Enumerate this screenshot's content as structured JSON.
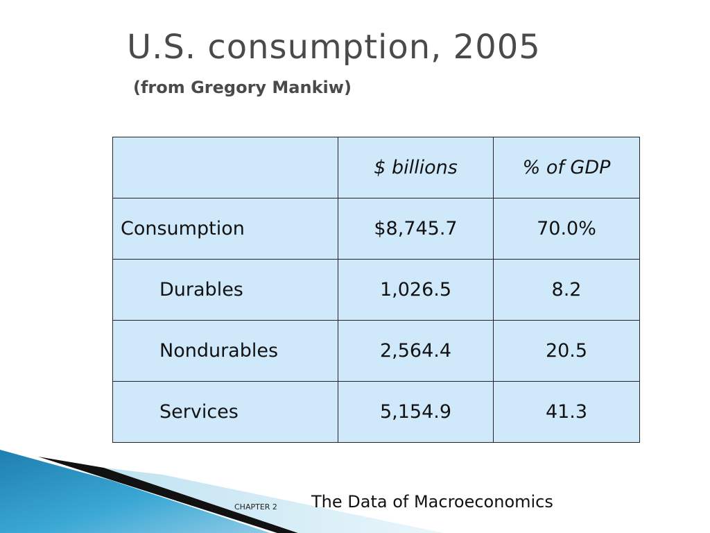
{
  "slide": {
    "title": "U.S. consumption, 2005",
    "subtitle": "(from Gregory Mankiw)"
  },
  "table": {
    "headers": [
      "",
      "$ billions",
      "% of GDP"
    ],
    "rows": [
      {
        "label": "Consumption",
        "billions": "$8,745.7",
        "pct_gdp": "70.0%"
      },
      {
        "label": "Durables",
        "billions": "1,026.5",
        "pct_gdp": "8.2"
      },
      {
        "label": "Nondurables",
        "billions": "2,564.4",
        "pct_gdp": "20.5"
      },
      {
        "label": "Services",
        "billions": "5,154.9",
        "pct_gdp": "41.3"
      }
    ]
  },
  "footer": {
    "chapter": "CHAPTER 2",
    "chapter_title": "The Data of Macroeconomics"
  },
  "colors": {
    "table_fill": "#cfe9fb",
    "title_text": "#4a4a4a",
    "deco_blue": "#2a8fbd"
  }
}
